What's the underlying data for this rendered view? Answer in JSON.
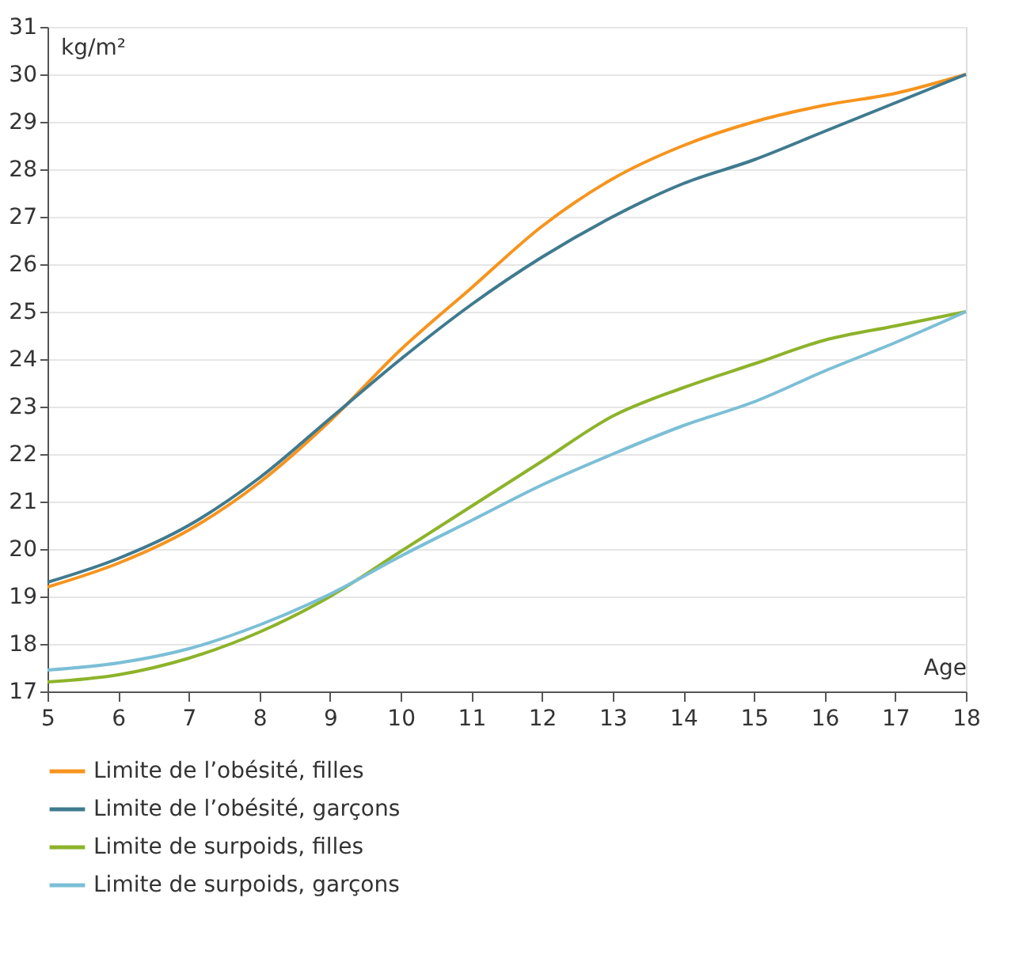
{
  "chart_data": {
    "type": "line",
    "xlabel": "Age",
    "ylabel": "kg/m²",
    "x": [
      5,
      6,
      7,
      8,
      9,
      10,
      11,
      12,
      13,
      14,
      15,
      16,
      17,
      18
    ],
    "series": [
      {
        "name": "Limite de l’obésité, filles",
        "color": "#f7941d",
        "values": [
          19.2,
          19.7,
          20.4,
          21.4,
          22.7,
          24.2,
          25.5,
          26.8,
          27.8,
          28.5,
          29.0,
          29.35,
          29.6,
          30.0
        ]
      },
      {
        "name": "Limite de l’obésité, garçons",
        "color": "#3f7a8f",
        "values": [
          19.3,
          19.8,
          20.5,
          21.5,
          22.75,
          24.0,
          25.15,
          26.15,
          27.0,
          27.7,
          28.2,
          28.8,
          29.4,
          30.0
        ]
      },
      {
        "name": "Limite de surpoids, filles",
        "color": "#8db32a",
        "values": [
          17.2,
          17.35,
          17.7,
          18.25,
          19.0,
          19.95,
          20.9,
          21.85,
          22.8,
          23.4,
          23.9,
          24.4,
          24.7,
          25.0
        ]
      },
      {
        "name": "Limite de surpoids, garçons",
        "color": "#7bbfd6",
        "values": [
          17.45,
          17.6,
          17.9,
          18.4,
          19.05,
          19.85,
          20.6,
          21.35,
          22.0,
          22.6,
          23.1,
          23.75,
          24.35,
          25.0
        ]
      }
    ],
    "xlim": [
      5,
      18
    ],
    "xticks": [
      5,
      6,
      7,
      8,
      9,
      10,
      11,
      12,
      13,
      14,
      15,
      16,
      17,
      18
    ],
    "ylim": [
      17,
      31
    ],
    "yticks": [
      17,
      18,
      19,
      20,
      21,
      22,
      23,
      24,
      25,
      26,
      27,
      28,
      29,
      30,
      31
    ],
    "grid": "y",
    "legend": "bottom left",
    "marker": "none",
    "line_style": "solid"
  }
}
